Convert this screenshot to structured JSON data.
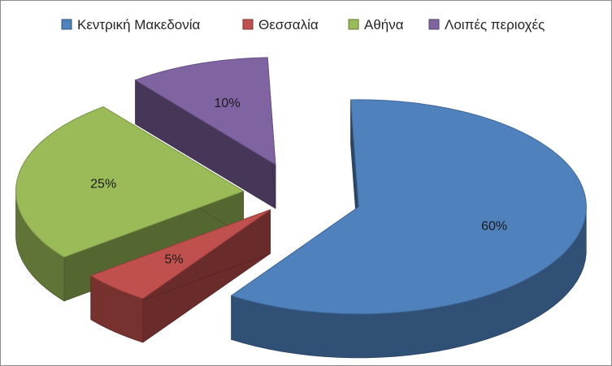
{
  "chart_data": {
    "type": "pie",
    "style": "3d-exploded",
    "categories": [
      "Κεντρική Μακεδονία",
      "Θεσσαλία",
      "Αθήνα",
      "Λοιπές περιοχές"
    ],
    "values": [
      60,
      5,
      25,
      10
    ],
    "labels": [
      "60%",
      "5%",
      "25%",
      "10%"
    ],
    "colors": [
      "#4f81bd",
      "#c0504d",
      "#9bbb59",
      "#8064a2"
    ],
    "legend_position": "top"
  }
}
